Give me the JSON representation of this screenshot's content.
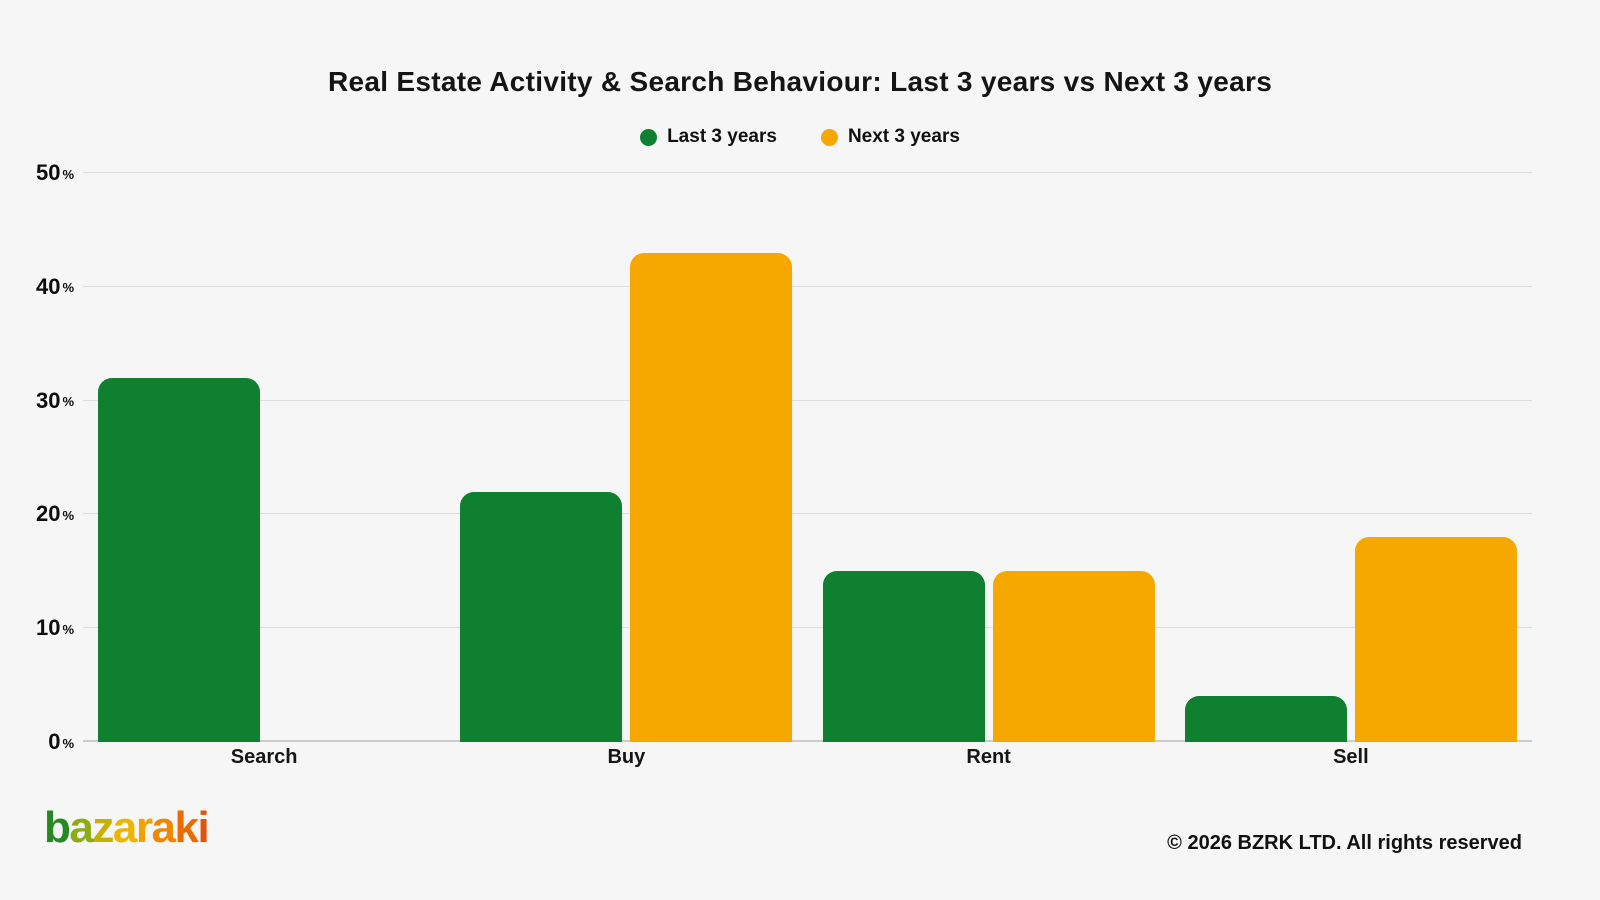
{
  "page": {
    "background_color": "#f6f6f6",
    "gridline_color": "#dedede"
  },
  "chart_data": {
    "type": "bar",
    "title": "Real Estate Activity & Search Behaviour: Last 3 years vs Next 3 years",
    "categories": [
      "Search",
      "Buy",
      "Rent",
      "Sell"
    ],
    "series": [
      {
        "name": "Last 3 years",
        "color": "#0E8030",
        "values": [
          32,
          22,
          15,
          4
        ]
      },
      {
        "name": "Next 3 years",
        "color": "#F6A800",
        "values": [
          0,
          43,
          15,
          18
        ]
      }
    ],
    "xlabel": "",
    "ylabel": "",
    "ylim": [
      0,
      50
    ],
    "yticks": [
      0,
      10,
      20,
      30,
      40,
      50
    ],
    "ytick_suffix": "%",
    "grid": "horizontal",
    "legend_position": "top-center"
  },
  "footer": {
    "logo_text": "bazaraki",
    "logo_letters": [
      {
        "char": "b",
        "color": "#258A1F"
      },
      {
        "char": "a",
        "color": "#8CAB15"
      },
      {
        "char": "z",
        "color": "#C6B100"
      },
      {
        "char": "a",
        "color": "#EDB400"
      },
      {
        "char": "r",
        "color": "#F4A000"
      },
      {
        "char": "a",
        "color": "#EF8700"
      },
      {
        "char": "k",
        "color": "#EA6C00"
      },
      {
        "char": "i",
        "color": "#E25310"
      }
    ],
    "copyright": "© 2026 BZRK LTD. All rights reserved"
  }
}
